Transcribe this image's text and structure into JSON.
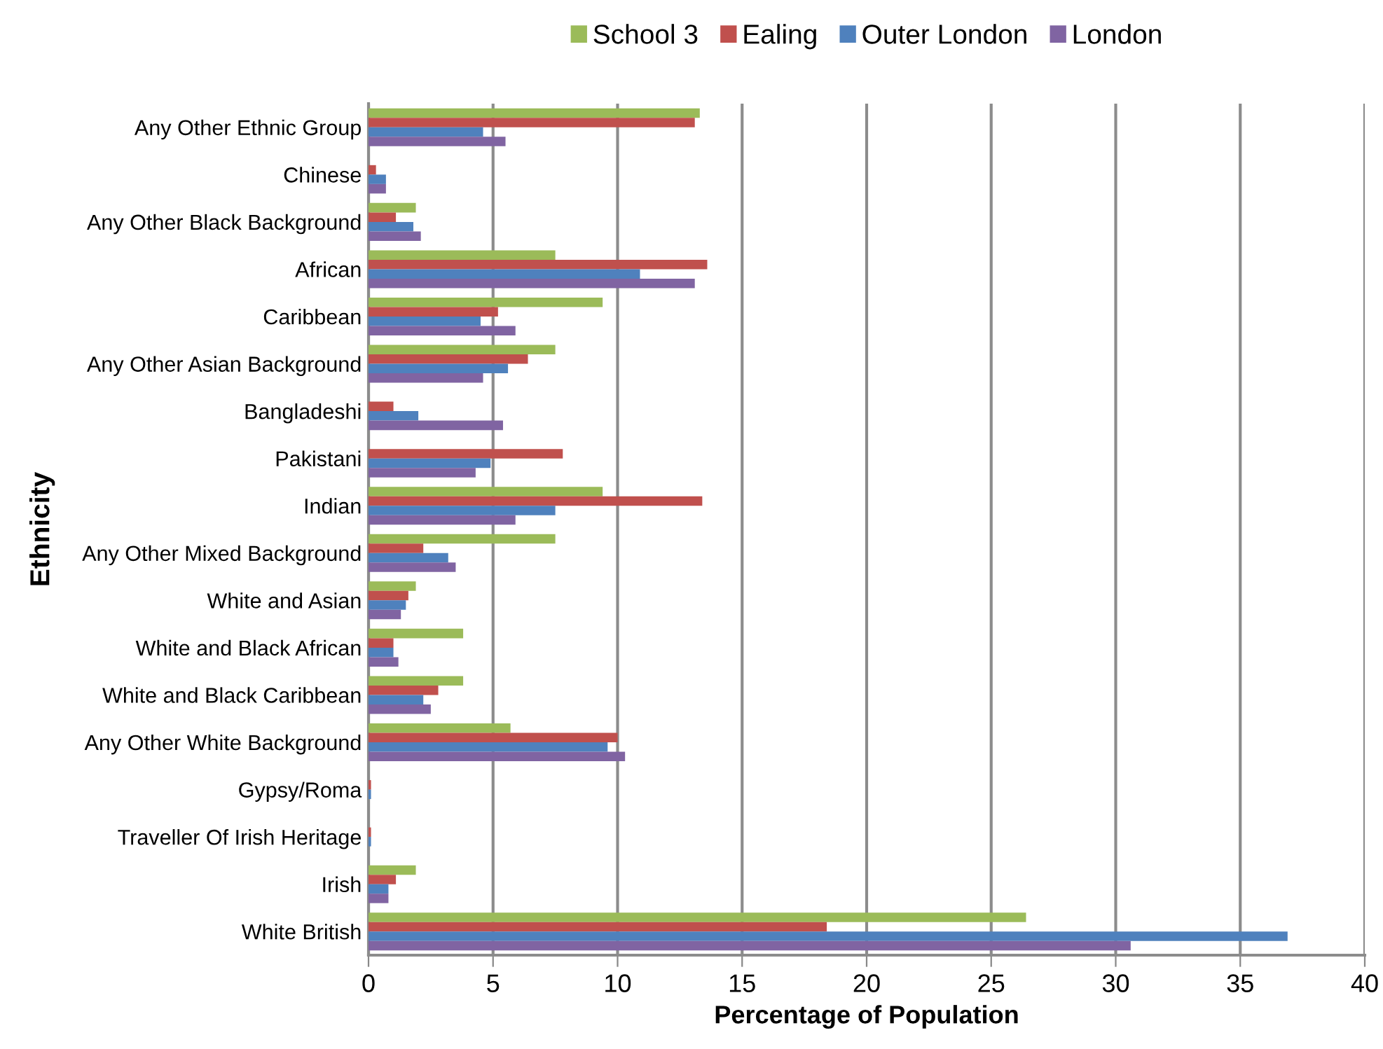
{
  "chart_data": {
    "type": "bar",
    "orientation": "horizontal",
    "xlabel": "Percentage of Population",
    "ylabel": "Ethnicity",
    "categories": [
      "Any Other Ethnic Group",
      "Chinese",
      "Any Other Black Background",
      "African",
      "Caribbean",
      "Any Other Asian Background",
      "Bangladeshi",
      "Pakistani",
      "Indian",
      "Any Other Mixed Background",
      "White and Asian",
      "White and Black African",
      "White and Black Caribbean",
      "Any Other White Background",
      "Gypsy/Roma",
      "Traveller Of Irish Heritage",
      "Irish",
      "White British"
    ],
    "series": [
      {
        "name": "School 3",
        "color": "#9bbb59",
        "values": [
          13.3,
          0,
          1.9,
          7.5,
          9.4,
          7.5,
          0,
          0,
          9.4,
          7.5,
          1.9,
          3.8,
          3.8,
          5.7,
          0,
          0,
          1.9,
          26.4
        ]
      },
      {
        "name": "Ealing",
        "color": "#c0504d",
        "values": [
          13.1,
          0.3,
          1.1,
          13.6,
          5.2,
          6.4,
          1.0,
          7.8,
          13.4,
          2.2,
          1.6,
          1.0,
          2.8,
          10.0,
          0.1,
          0.1,
          1.1,
          18.4
        ]
      },
      {
        "name": "Outer London",
        "color": "#4f81bd",
        "values": [
          4.6,
          0.7,
          1.8,
          10.9,
          4.5,
          5.6,
          2.0,
          4.9,
          7.5,
          3.2,
          1.5,
          1.0,
          2.2,
          9.6,
          0.1,
          0.1,
          0.8,
          36.9
        ]
      },
      {
        "name": "London",
        "color": "#8064a2",
        "values": [
          5.5,
          0.7,
          2.1,
          13.1,
          5.9,
          4.6,
          5.4,
          4.3,
          5.9,
          3.5,
          1.3,
          1.2,
          2.5,
          10.3,
          null,
          null,
          0.8,
          30.6
        ]
      }
    ],
    "xlim": [
      0,
      40
    ],
    "xticks": [
      0,
      5,
      10,
      15,
      20,
      25,
      30,
      35,
      40
    ],
    "grid": "x",
    "legend": "top"
  }
}
